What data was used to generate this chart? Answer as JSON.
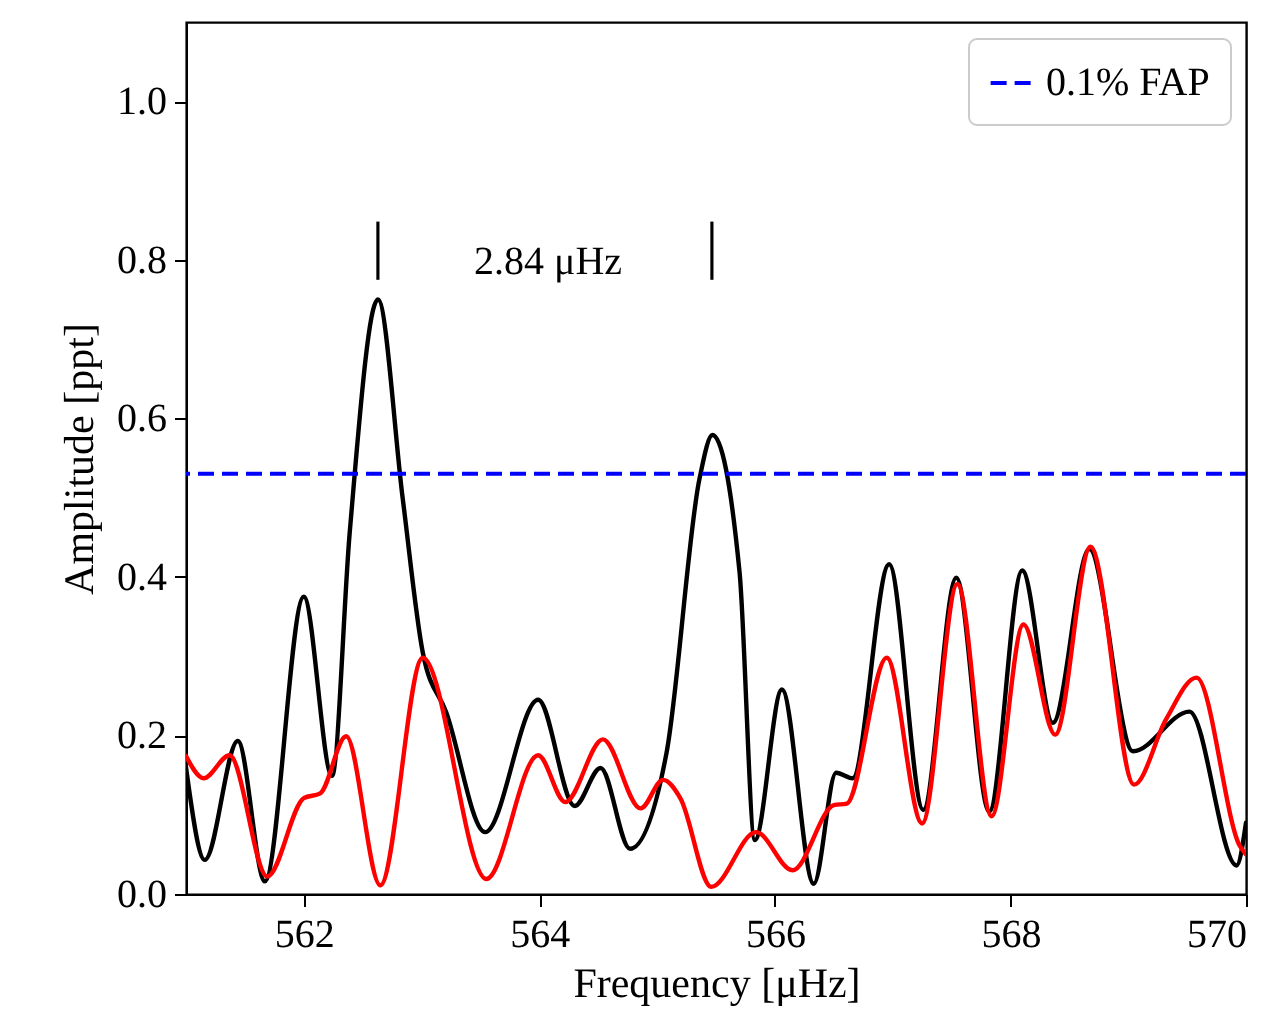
{
  "chart_data": {
    "type": "line",
    "xlabel": "Frequency [μHz]",
    "ylabel": "Amplitude [ppt]",
    "xlim": [
      561,
      570
    ],
    "xticks": [
      562,
      564,
      566,
      568,
      570
    ],
    "ylim": [
      0,
      1.1
    ],
    "yticks": [
      {
        "value": 0,
        "label": "0.0"
      },
      {
        "value": 0.2,
        "label": "0.2"
      },
      {
        "value": 0.4,
        "label": "0.4"
      },
      {
        "value": 0.6,
        "label": "0.6"
      },
      {
        "value": 0.8,
        "label": "0.8"
      },
      {
        "value": 1.0,
        "label": "1.0"
      }
    ],
    "series": [
      {
        "color": "#000000",
        "x": [
          561.0,
          561.16,
          561.44,
          561.67,
          562.0,
          562.24,
          562.39,
          562.63,
          562.84,
          563.01,
          563.21,
          563.54,
          563.99,
          564.3,
          564.52,
          564.77,
          565.08,
          565.36,
          565.47,
          565.7,
          565.83,
          566.06,
          566.33,
          566.52,
          566.66,
          566.97,
          567.26,
          567.54,
          567.82,
          568.1,
          568.36,
          568.67,
          569.04,
          569.52,
          569.92,
          570.0
        ],
        "values": [
          0.16,
          0.043,
          0.193,
          0.016,
          0.375,
          0.149,
          0.456,
          0.75,
          0.499,
          0.305,
          0.229,
          0.078,
          0.245,
          0.111,
          0.159,
          0.057,
          0.178,
          0.524,
          0.579,
          0.406,
          0.068,
          0.258,
          0.013,
          0.153,
          0.146,
          0.416,
          0.106,
          0.399,
          0.104,
          0.408,
          0.216,
          0.435,
          0.18,
          0.23,
          0.036,
          0.09
        ]
      },
      {
        "color": "#ff0000",
        "x": [
          561.0,
          561.15,
          561.37,
          561.69,
          562.0,
          562.14,
          562.36,
          562.65,
          563.01,
          563.55,
          563.99,
          564.22,
          564.54,
          564.86,
          565.05,
          565.2,
          565.46,
          565.84,
          566.15,
          566.5,
          566.61,
          566.95,
          567.25,
          567.55,
          567.84,
          568.11,
          568.38,
          568.68,
          569.05,
          569.32,
          569.58,
          569.95,
          570.0
        ],
        "values": [
          0.174,
          0.146,
          0.175,
          0.022,
          0.121,
          0.127,
          0.199,
          0.011,
          0.298,
          0.019,
          0.175,
          0.116,
          0.195,
          0.108,
          0.144,
          0.12,
          0.009,
          0.078,
          0.03,
          0.112,
          0.114,
          0.298,
          0.089,
          0.391,
          0.098,
          0.34,
          0.201,
          0.438,
          0.138,
          0.22,
          0.273,
          0.06,
          0.05
        ]
      }
    ],
    "ref_lines": [
      {
        "axis": "y",
        "value": 0.53,
        "label": "0.1% FAP",
        "color": "#0000ff",
        "line_style": "dashed"
      }
    ],
    "annotations": [
      "2.84 μHz",
      "|",
      "|"
    ],
    "legend": "top right",
    "grid": false
  }
}
